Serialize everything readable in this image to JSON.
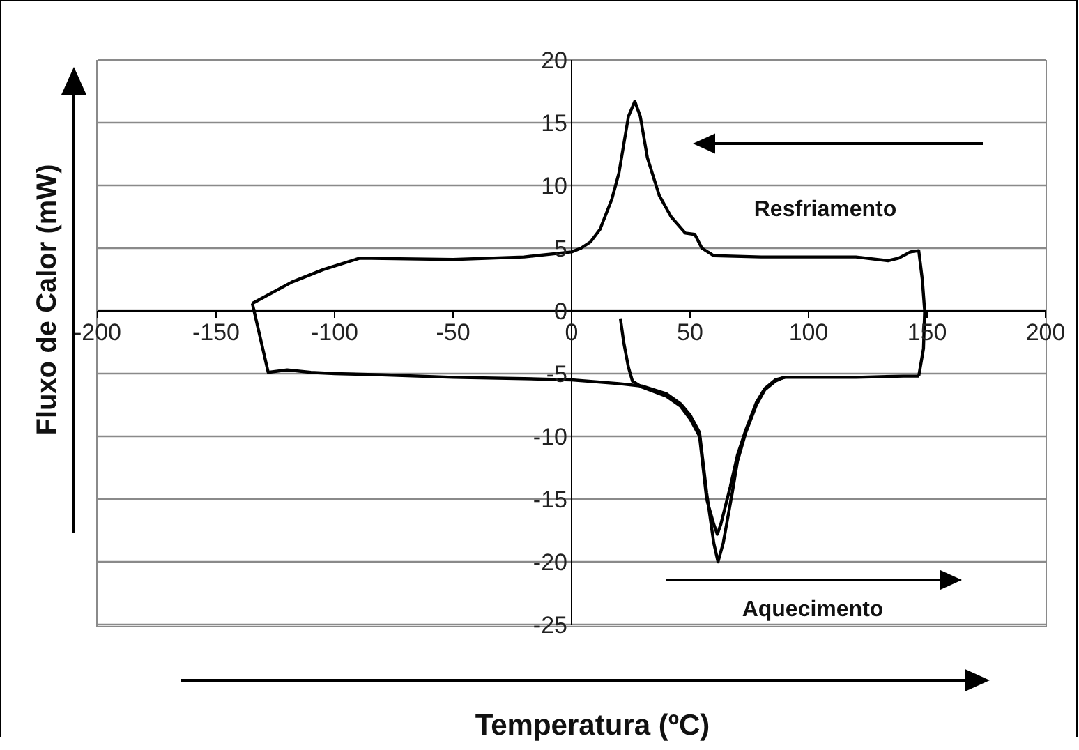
{
  "chart_data": {
    "type": "line",
    "xlabel": "Temperatura (ºC)",
    "ylabel": "Fluxo de Calor (mW)",
    "xlim": [
      -200,
      200
    ],
    "xticks": [
      -200,
      -150,
      -100,
      -50,
      0,
      50,
      100,
      150,
      200
    ],
    "ylim": [
      -25,
      20
    ],
    "yticks": [
      -25,
      -20,
      -15,
      -10,
      -5,
      0,
      5,
      10,
      15,
      20
    ],
    "grid": "y",
    "annotations": [
      "Resfriamento",
      "Aquecimento"
    ],
    "series": [
      {
        "color": "#000000",
        "x": [
          -134.7,
          -128,
          -120,
          -110,
          -100,
          -80,
          -50,
          -20,
          0,
          20,
          30,
          40,
          46,
          50,
          54,
          57,
          60,
          61.8,
          64,
          67.8,
          70,
          73.5,
          78,
          81.5,
          86,
          89.5,
          100,
          120,
          140,
          146.5
        ],
        "values": [
          0.6,
          -4.9,
          -4.7,
          -4.9,
          -5.0,
          -5.1,
          -5.3,
          -5.4,
          -5.5,
          -5.8,
          -6.0,
          -6.6,
          -7.4,
          -8.3,
          -9.7,
          -14.5,
          -18.5,
          -20,
          -18.5,
          -14.5,
          -12,
          -9.7,
          -7.5,
          -6.3,
          -5.6,
          -5.3,
          -5.3,
          -5.3,
          -5.2,
          -5.2
        ]
      },
      {
        "color": "#000000",
        "x": [
          146.5,
          148.5,
          149,
          148,
          146.5,
          143,
          138,
          133.5,
          120,
          100,
          80,
          60,
          55,
          52,
          48,
          42,
          37,
          32,
          29,
          26.7,
          24,
          20,
          17,
          12,
          8,
          4,
          0,
          -20,
          -50,
          -89.4,
          -104.7,
          -118,
          -134.7
        ],
        "values": [
          -5.2,
          -3,
          0,
          2.5,
          4.8,
          4.7,
          4.2,
          4.0,
          4.3,
          4.3,
          4.3,
          4.4,
          5.0,
          6.1,
          6.2,
          7.5,
          9.2,
          12.2,
          15.5,
          16.7,
          15.5,
          11,
          8.9,
          6.5,
          5.5,
          5.0,
          4.7,
          4.3,
          4.1,
          4.2,
          3.3,
          2.3,
          0.6
        ]
      },
      {
        "color": "#000000",
        "x": [
          20.6,
          22,
          24,
          25.7,
          30,
          40,
          46,
          50,
          54,
          57,
          60,
          61.5,
          63,
          67,
          70,
          73.5,
          78,
          81.5,
          86,
          90
        ],
        "values": [
          -0.6,
          -2.5,
          -4.5,
          -5.6,
          -6.1,
          -6.8,
          -7.6,
          -8.6,
          -10,
          -15,
          -17,
          -17.8,
          -17,
          -14,
          -11.5,
          -9.5,
          -7.3,
          -6.2,
          -5.5,
          -5.3
        ]
      }
    ]
  }
}
